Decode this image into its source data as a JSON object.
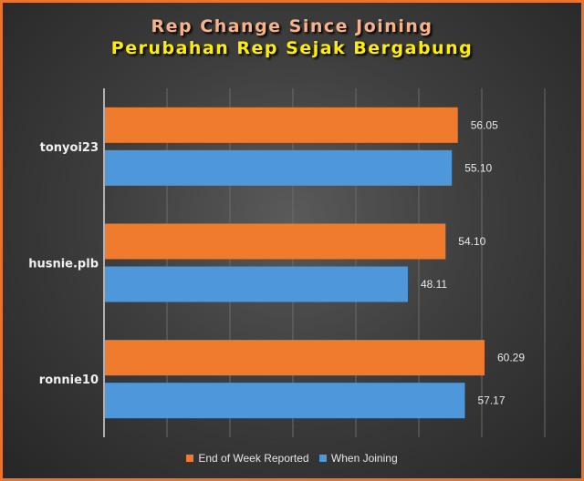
{
  "chart_data": {
    "type": "bar",
    "orientation": "horizontal",
    "title": "Rep Change Since Joining",
    "subtitle": "Perubahan Rep Sejak Bergabung",
    "categories": [
      "tonyoi23",
      "husnie.plb",
      "ronnie10"
    ],
    "series": [
      {
        "name": "End of Week Reported",
        "color": "#f07b2c",
        "values": [
          56.05,
          54.1,
          60.29
        ],
        "labels": [
          "56.05",
          "54.10",
          "60.29"
        ]
      },
      {
        "name": "When Joining",
        "color": "#4f97db",
        "values": [
          55.1,
          48.11,
          57.17
        ],
        "labels": [
          "55.10",
          "48.11",
          "57.17"
        ]
      }
    ],
    "xlim": [
      0,
      70
    ],
    "xtick_step": 10,
    "grid": true,
    "legend_position": "bottom"
  }
}
